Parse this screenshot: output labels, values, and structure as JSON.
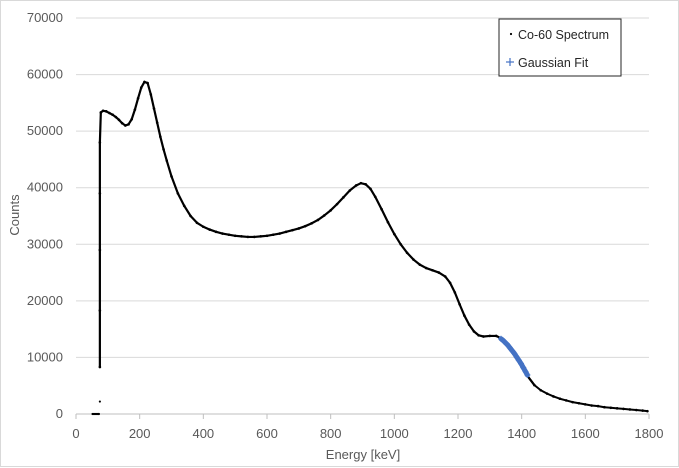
{
  "chart_data": {
    "type": "scatter",
    "xlabel": "Energy [keV]",
    "ylabel": "Counts",
    "xlim": [
      0,
      1800
    ],
    "ylim": [
      0,
      70000
    ],
    "xticks": [
      "0",
      "200",
      "400",
      "600",
      "800",
      "1000",
      "1200",
      "1400",
      "1600",
      "1800"
    ],
    "yticks": [
      "0",
      "10000",
      "20000",
      "30000",
      "40000",
      "50000",
      "60000",
      "70000"
    ],
    "grid": "horizontal",
    "legend_position": "top-right",
    "series": [
      {
        "name": "Co-60 Spectrum",
        "color": "#000000",
        "marker": "dot",
        "points": [
          [
            52,
            0
          ],
          [
            55,
            0
          ],
          [
            58,
            0
          ],
          [
            61,
            0
          ],
          [
            64,
            0
          ],
          [
            67,
            0
          ],
          [
            70,
            0
          ],
          [
            72,
            0
          ],
          [
            75,
            2200
          ],
          [
            75,
            8300
          ],
          [
            75,
            18300
          ],
          [
            75,
            29000
          ],
          [
            75,
            39000
          ],
          [
            75,
            48000
          ],
          [
            78,
            53300
          ],
          [
            85,
            53600
          ],
          [
            95,
            53500
          ],
          [
            105,
            53200
          ],
          [
            115,
            52900
          ],
          [
            125,
            52500
          ],
          [
            135,
            52000
          ],
          [
            145,
            51400
          ],
          [
            155,
            51000
          ],
          [
            165,
            51200
          ],
          [
            175,
            52100
          ],
          [
            185,
            53800
          ],
          [
            195,
            55800
          ],
          [
            205,
            57700
          ],
          [
            215,
            58700
          ],
          [
            225,
            58500
          ],
          [
            235,
            56500
          ],
          [
            245,
            54000
          ],
          [
            255,
            51500
          ],
          [
            265,
            49000
          ],
          [
            275,
            46800
          ],
          [
            285,
            44800
          ],
          [
            300,
            42000
          ],
          [
            320,
            39000
          ],
          [
            340,
            36800
          ],
          [
            360,
            35000
          ],
          [
            380,
            33800
          ],
          [
            400,
            33100
          ],
          [
            420,
            32600
          ],
          [
            440,
            32200
          ],
          [
            460,
            31900
          ],
          [
            480,
            31700
          ],
          [
            500,
            31500
          ],
          [
            520,
            31400
          ],
          [
            540,
            31300
          ],
          [
            560,
            31300
          ],
          [
            580,
            31400
          ],
          [
            600,
            31500
          ],
          [
            620,
            31700
          ],
          [
            640,
            31900
          ],
          [
            660,
            32200
          ],
          [
            680,
            32500
          ],
          [
            700,
            32800
          ],
          [
            720,
            33200
          ],
          [
            740,
            33700
          ],
          [
            760,
            34300
          ],
          [
            780,
            35100
          ],
          [
            800,
            36000
          ],
          [
            820,
            37100
          ],
          [
            840,
            38300
          ],
          [
            860,
            39500
          ],
          [
            880,
            40400
          ],
          [
            895,
            40800
          ],
          [
            910,
            40600
          ],
          [
            925,
            39800
          ],
          [
            940,
            38400
          ],
          [
            960,
            36200
          ],
          [
            980,
            33900
          ],
          [
            1000,
            31800
          ],
          [
            1020,
            30000
          ],
          [
            1040,
            28500
          ],
          [
            1060,
            27300
          ],
          [
            1080,
            26400
          ],
          [
            1100,
            25800
          ],
          [
            1120,
            25400
          ],
          [
            1140,
            25000
          ],
          [
            1160,
            24300
          ],
          [
            1175,
            23200
          ],
          [
            1190,
            21500
          ],
          [
            1205,
            19400
          ],
          [
            1220,
            17400
          ],
          [
            1235,
            15800
          ],
          [
            1250,
            14600
          ],
          [
            1265,
            13900
          ],
          [
            1280,
            13700
          ],
          [
            1300,
            13800
          ],
          [
            1320,
            13800
          ],
          [
            1335,
            13400
          ],
          [
            1420,
            6600
          ],
          [
            1440,
            5100
          ],
          [
            1460,
            4200
          ],
          [
            1480,
            3600
          ],
          [
            1500,
            3100
          ],
          [
            1520,
            2700
          ],
          [
            1540,
            2400
          ],
          [
            1560,
            2100
          ],
          [
            1580,
            1900
          ],
          [
            1600,
            1700
          ],
          [
            1620,
            1500
          ],
          [
            1640,
            1400
          ],
          [
            1660,
            1200
          ],
          [
            1680,
            1100
          ],
          [
            1700,
            1000
          ],
          [
            1720,
            900
          ],
          [
            1740,
            800
          ],
          [
            1760,
            700
          ],
          [
            1780,
            600
          ],
          [
            1795,
            500
          ]
        ]
      },
      {
        "name": "Gaussian Fit",
        "color": "#4472c4",
        "marker": "plus",
        "points": [
          [
            1335,
            13300
          ],
          [
            1342,
            13000
          ],
          [
            1349,
            12600
          ],
          [
            1356,
            12200
          ],
          [
            1363,
            11700
          ],
          [
            1370,
            11200
          ],
          [
            1377,
            10700
          ],
          [
            1384,
            10100
          ],
          [
            1391,
            9500
          ],
          [
            1398,
            8900
          ],
          [
            1405,
            8200
          ],
          [
            1412,
            7500
          ],
          [
            1418,
            6900
          ]
        ]
      }
    ]
  }
}
